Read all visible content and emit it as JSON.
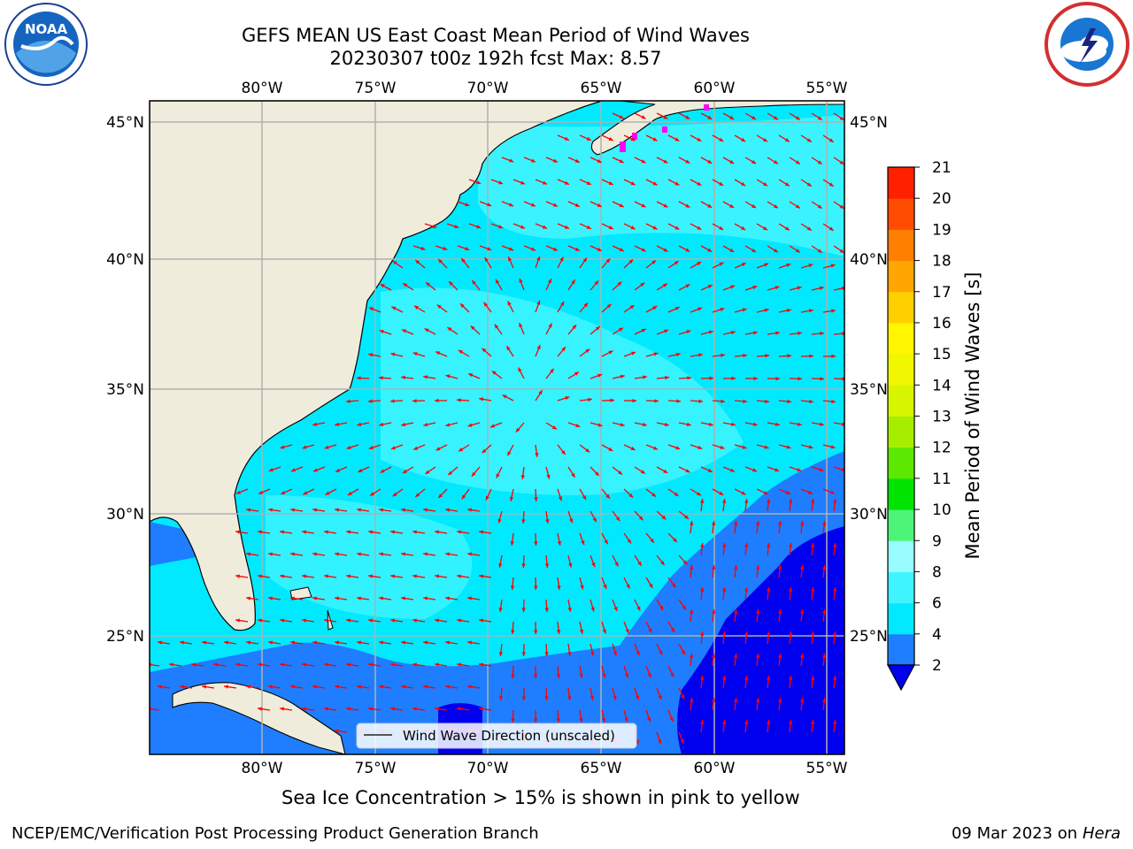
{
  "header": {
    "title_line1": "GEFS MEAN US East Coast Mean Period of Wind Waves",
    "title_line2": "20230307 t00z 192h fcst   Max: 8.57"
  },
  "logos": {
    "left": {
      "icon": "noaa-logo-icon",
      "text": "NOAA"
    },
    "right": {
      "icon": "nws-logo-icon"
    }
  },
  "map": {
    "lon_labels": [
      "80°W",
      "75°W",
      "70°W",
      "65°W",
      "60°W",
      "55°W"
    ],
    "lat_labels": [
      "45°N",
      "40°N",
      "35°N",
      "30°N",
      "25°N"
    ],
    "legend_label": "Wind Wave Direction (unscaled)",
    "land_color": "#efecdc",
    "arrow_color": "#ff0000"
  },
  "colorbar": {
    "label": "Mean Period of Wind Waves [s]",
    "ticks": [
      "2",
      "4",
      "6",
      "8",
      "9",
      "10",
      "11",
      "12",
      "13",
      "14",
      "15",
      "16",
      "17",
      "18",
      "19",
      "20",
      "21"
    ],
    "colors": [
      "#1e7eff",
      "#00e9ff",
      "#40f4ff",
      "#99fdff",
      "#4cf577",
      "#00e400",
      "#5ce800",
      "#a6ee00",
      "#d6f500",
      "#f0f700",
      "#fff600",
      "#ffcf00",
      "#ffa600",
      "#ff7f00",
      "#ff4c00",
      "#ff2000",
      "#ff0000"
    ]
  },
  "footer": {
    "ice_note": "Sea Ice Concentration > 15% is shown in pink to yellow",
    "credit": "NCEP/EMC/Verification Post Processing Product Generation Branch",
    "date": "09 Mar 2023 on",
    "host": "Hera"
  }
}
